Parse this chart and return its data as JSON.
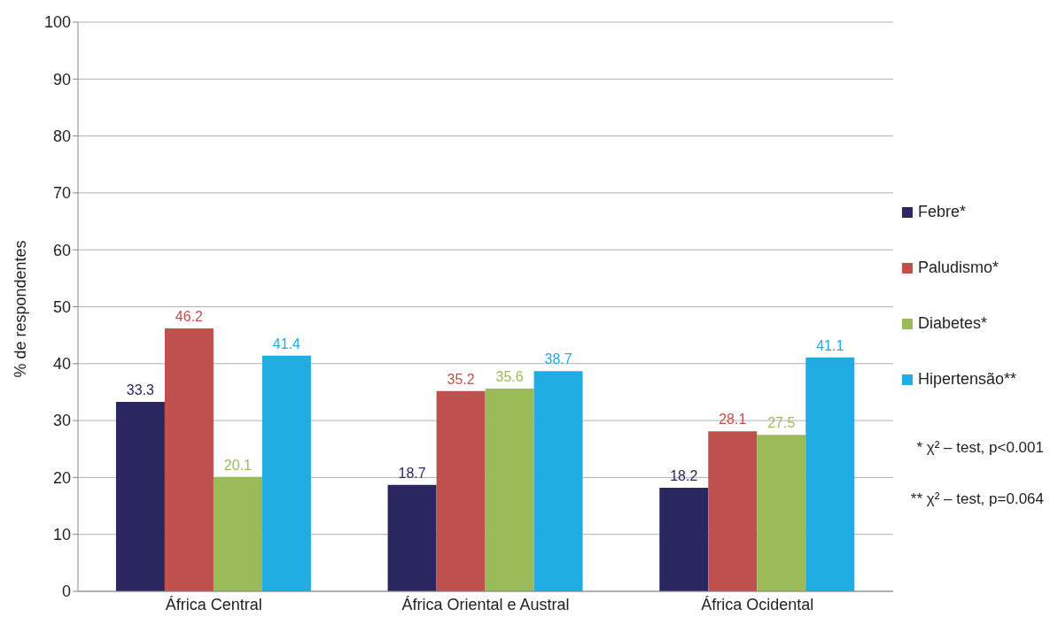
{
  "chart_data": {
    "type": "bar",
    "ylabel": "% de respondentes",
    "categories": [
      "África Central",
      "África Oriental e Austral",
      "África Ocidental"
    ],
    "series": [
      {
        "name": "Febre*",
        "color": "#2a2760",
        "values": [
          33.3,
          18.7,
          18.2
        ]
      },
      {
        "name": "Paludismo*",
        "color": "#c0504d",
        "values": [
          46.2,
          35.2,
          28.1
        ]
      },
      {
        "name": "Diabetes*",
        "color": "#9bbb59",
        "values": [
          20.1,
          35.6,
          27.5
        ]
      },
      {
        "name": "Hipertensão**",
        "color": "#21ade3",
        "values": [
          41.4,
          38.7,
          41.1
        ]
      }
    ],
    "ylim": [
      0,
      100
    ],
    "yticks": [
      0,
      10,
      20,
      30,
      40,
      50,
      60,
      70,
      80,
      90,
      100
    ],
    "grid": "y",
    "legend": "right",
    "data_labels": true,
    "annotations": [
      "* χ² – test, p<0.001",
      "** χ² – test, p=0.064"
    ]
  }
}
